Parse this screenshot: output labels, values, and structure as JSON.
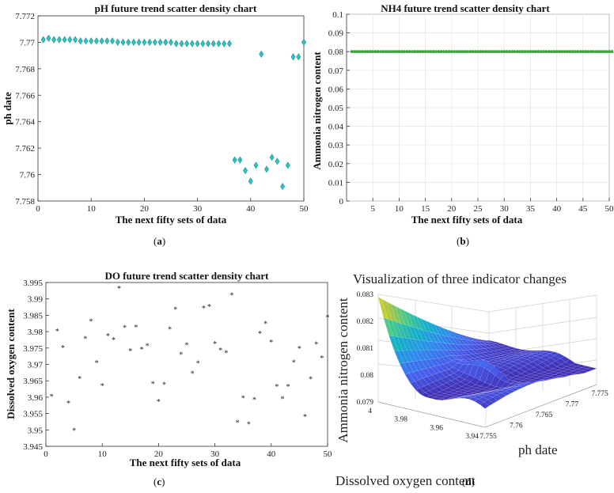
{
  "chart_data": [
    {
      "type": "scatter",
      "title": "pH future trend scatter density chart",
      "xlabel": "The next fifty sets of data",
      "ylabel": "ph date",
      "caption": "a",
      "xlim": [
        0,
        50
      ],
      "ylim": [
        7.758,
        7.772
      ],
      "xticks": [
        "0",
        "10",
        "20",
        "30",
        "40",
        "50"
      ],
      "yticks": [
        "7.758",
        "7.76",
        "7.762",
        "7.764",
        "7.766",
        "7.768",
        "7.77",
        "7.772"
      ],
      "marker": "diamond",
      "color": "#2ec4c4",
      "series": [
        {
          "name": "pH",
          "x": [
            1,
            2,
            3,
            4,
            5,
            6,
            7,
            8,
            9,
            10,
            11,
            12,
            13,
            14,
            15,
            16,
            17,
            18,
            19,
            20,
            21,
            22,
            23,
            24,
            25,
            26,
            27,
            28,
            29,
            30,
            31,
            32,
            33,
            34,
            35,
            36,
            37,
            38,
            39,
            40,
            41,
            42,
            43,
            44,
            45,
            46,
            47,
            48,
            49,
            50
          ],
          "y": [
            7.7702,
            7.7703,
            7.7702,
            7.7702,
            7.7702,
            7.7702,
            7.7702,
            7.7701,
            7.7701,
            7.7701,
            7.7701,
            7.7701,
            7.7701,
            7.7701,
            7.77,
            7.77,
            7.77,
            7.77,
            7.77,
            7.77,
            7.77,
            7.77,
            7.77,
            7.77,
            7.77,
            7.7699,
            7.7699,
            7.7699,
            7.7699,
            7.7699,
            7.7699,
            7.7699,
            7.7699,
            7.7699,
            7.7699,
            7.7699,
            7.7611,
            7.7611,
            7.7603,
            7.7595,
            7.7607,
            7.7691,
            7.7604,
            7.7613,
            7.761,
            7.7591,
            7.7607,
            7.7689,
            7.7689,
            7.77
          ]
        }
      ]
    },
    {
      "type": "scatter",
      "title": "NH4 future trend scatter density chart",
      "xlabel": "The next fifty sets of data",
      "ylabel": "Ammonia nitrogen content",
      "caption": "b",
      "xlim": [
        0,
        50
      ],
      "ylim": [
        0,
        0.1
      ],
      "xticks": [
        "5",
        "10",
        "15",
        "20",
        "25",
        "30",
        "35",
        "40",
        "45",
        "50"
      ],
      "yticks": [
        "0",
        "0.01",
        "0.02",
        "0.03",
        "0.04",
        "0.05",
        "0.06",
        "0.07",
        "0.08",
        "0.09",
        "0.1"
      ],
      "grid": true,
      "marker": "dot",
      "color": "#3aa63a",
      "series": [
        {
          "name": "NH4",
          "x": [
            1,
            2,
            3,
            4,
            5,
            6,
            7,
            8,
            9,
            10,
            11,
            12,
            13,
            14,
            15,
            16,
            17,
            18,
            19,
            20,
            21,
            22,
            23,
            24,
            25,
            26,
            27,
            28,
            29,
            30,
            31,
            32,
            33,
            34,
            35,
            36,
            37,
            38,
            39,
            40,
            41,
            42,
            43,
            44,
            45,
            46,
            47,
            48,
            49,
            50
          ],
          "y": [
            0.08,
            0.08,
            0.08,
            0.08,
            0.08,
            0.08,
            0.08,
            0.08,
            0.08,
            0.08,
            0.08,
            0.08,
            0.08,
            0.08,
            0.08,
            0.08,
            0.08,
            0.08,
            0.08,
            0.08,
            0.08,
            0.08,
            0.08,
            0.08,
            0.08,
            0.08,
            0.08,
            0.08,
            0.08,
            0.08,
            0.08,
            0.08,
            0.08,
            0.08,
            0.08,
            0.08,
            0.08,
            0.08,
            0.08,
            0.08,
            0.08,
            0.08,
            0.08,
            0.08,
            0.08,
            0.08,
            0.08,
            0.08,
            0.08,
            0.08
          ]
        }
      ]
    },
    {
      "type": "scatter",
      "title": "DO future trend scatter density chart",
      "xlabel": "The next fifty sets of data",
      "ylabel": "Dissolved oxygen content",
      "caption": "c",
      "xlim": [
        0,
        50
      ],
      "ylim": [
        3.945,
        3.995
      ],
      "xticks": [
        "0",
        "10",
        "20",
        "30",
        "40",
        "50"
      ],
      "yticks": [
        "3.945",
        "3.95",
        "3.955",
        "3.96",
        "3.965",
        "3.97",
        "3.975",
        "3.98",
        "3.985",
        "3.99",
        "3.995"
      ],
      "marker": "star",
      "color": "#222222",
      "series": [
        {
          "name": "DO",
          "x": [
            1,
            2,
            3,
            4,
            5,
            6,
            7,
            8,
            9,
            10,
            11,
            12,
            13,
            14,
            15,
            16,
            17,
            18,
            19,
            20,
            21,
            22,
            23,
            24,
            25,
            26,
            27,
            28,
            29,
            30,
            31,
            32,
            33,
            34,
            35,
            36,
            37,
            38,
            39,
            40,
            41,
            42,
            43,
            44,
            45,
            46,
            47,
            48,
            49,
            50
          ],
          "y": [
            3.9602,
            3.9802,
            3.9751,
            3.9582,
            3.9498,
            3.9657,
            3.9778,
            3.9832,
            3.9705,
            3.9635,
            3.9787,
            3.9775,
            3.9932,
            3.9812,
            3.9741,
            3.9813,
            3.9746,
            3.9757,
            3.9641,
            3.9587,
            3.9638,
            3.9808,
            3.9868,
            3.973,
            3.9759,
            3.9672,
            3.9704,
            3.9871,
            3.9876,
            3.9763,
            3.9743,
            3.9735,
            3.9911,
            3.9522,
            3.9597,
            3.9518,
            3.9592,
            3.9794,
            3.9825,
            3.9768,
            3.9632,
            3.9595,
            3.9632,
            3.9706,
            3.9748,
            3.9541,
            3.9655,
            3.9762,
            3.9719,
            3.9844
          ]
        }
      ]
    },
    {
      "type": "surface",
      "title": "Visualization of three indicator changes",
      "xlabel": "ph date",
      "ylabel": "Dissolved oxygen content",
      "zlabel": "Ammonia nitrogen content",
      "caption": "d",
      "xlim": [
        7.755,
        7.775
      ],
      "ylim": [
        3.94,
        4.0
      ],
      "zlim": [
        0.079,
        0.083
      ],
      "xticks": [
        "7.755",
        "7.76",
        "7.765",
        "7.77",
        "7.775"
      ],
      "yticks": [
        "3.94",
        "3.96",
        "3.98",
        "4"
      ],
      "zticks": [
        "0.079",
        "0.08",
        "0.081",
        "0.082",
        "0.083"
      ],
      "colormap": "parula"
    }
  ]
}
